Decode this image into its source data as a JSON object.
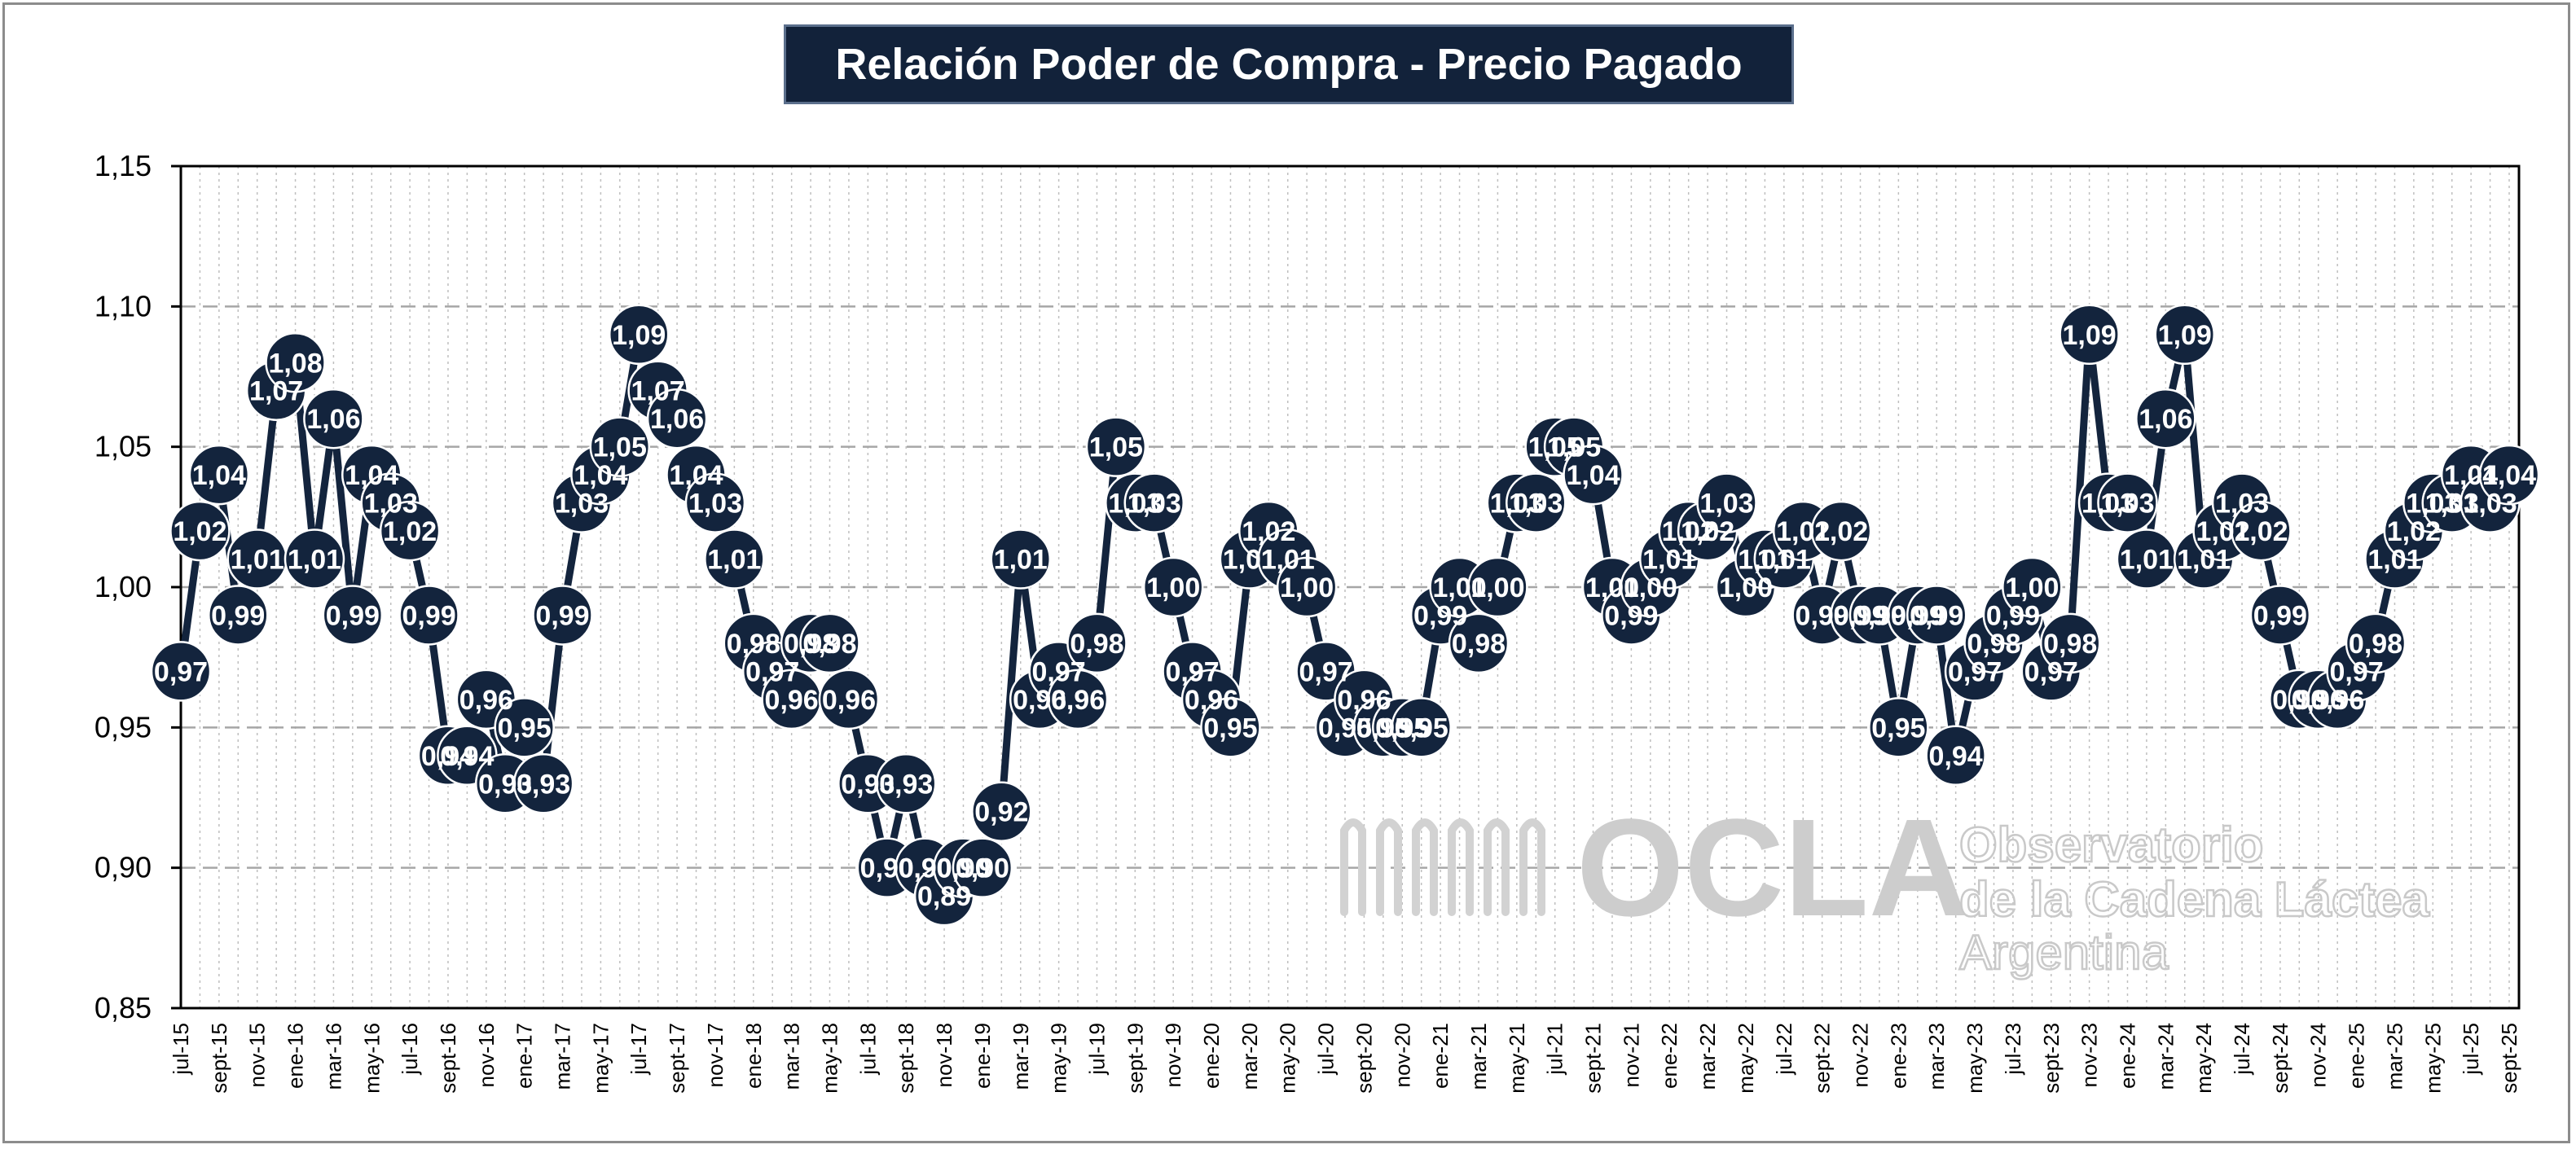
{
  "chart_data": {
    "type": "line",
    "title": "Relación Poder de Compra - Precio Pagado",
    "ylim": [
      0.85,
      1.15
    ],
    "y_ticks": [
      "0,85",
      "0,90",
      "0,95",
      "1,00",
      "1,05",
      "1,10",
      "1,15"
    ],
    "x_labels": [
      "jul-15",
      "sept-15",
      "nov-15",
      "ene-16",
      "mar-16",
      "may-16",
      "jul-16",
      "sept-16",
      "nov-16",
      "ene-17",
      "mar-17",
      "may-17",
      "jul-17",
      "sept-17",
      "nov-17",
      "ene-18",
      "mar-18",
      "may-18",
      "jul-18",
      "sept-18",
      "nov-18",
      "ene-19",
      "mar-19",
      "may-19",
      "jul-19",
      "sept-19",
      "nov-19",
      "ene-20",
      "mar-20",
      "may-20",
      "jul-20",
      "sept-20",
      "nov-20",
      "ene-21",
      "mar-21",
      "may-21",
      "jul-21",
      "sept-21",
      "nov-21",
      "ene-22",
      "mar-22",
      "may-22",
      "jul-22",
      "sept-22",
      "nov-22",
      "ene-23",
      "mar-23",
      "may-23",
      "jul-23",
      "sept-23",
      "nov-23",
      "ene-24",
      "mar-24",
      "may-24",
      "jul-24",
      "sept-24",
      "nov-24",
      "ene-25",
      "mar-25",
      "may-25",
      "jul-25",
      "sept-25"
    ],
    "legend": "none",
    "grid": "horizontal dashed major, vertical dotted",
    "series": [
      {
        "values": [
          0.97,
          1.02,
          1.04,
          0.99,
          1.01,
          1.07,
          1.08,
          1.01,
          1.06,
          0.99,
          1.04,
          1.03,
          1.02,
          0.99,
          0.94,
          0.94,
          0.96,
          0.93,
          0.95,
          0.93,
          0.99,
          1.03,
          1.04,
          1.05,
          1.09,
          1.07,
          1.06,
          1.04,
          1.03,
          1.01,
          0.98,
          0.97,
          0.96,
          0.98,
          0.98,
          0.96,
          0.93,
          0.9,
          0.93,
          0.9,
          0.89,
          0.9,
          0.9,
          0.92,
          1.01,
          0.96,
          0.97,
          0.96,
          0.98,
          1.05,
          1.03,
          1.03,
          1.0,
          0.97,
          0.96,
          0.95,
          1.01,
          1.02,
          1.01,
          1.0,
          0.97,
          0.95,
          0.96,
          0.95,
          0.95,
          0.95,
          0.99,
          1.0,
          0.98,
          1.0,
          1.03,
          1.03,
          1.05,
          1.05,
          1.04,
          1.0,
          0.99,
          1.0,
          1.01,
          1.02,
          1.02,
          1.03,
          1.0,
          1.01,
          1.01,
          1.02,
          0.99,
          1.02,
          0.99,
          0.99,
          0.95,
          0.99,
          0.99,
          0.94,
          0.97,
          0.98,
          0.99,
          1.0,
          0.97,
          0.98,
          1.09,
          1.03,
          1.03,
          1.01,
          1.06,
          1.09,
          1.01,
          1.02,
          1.03,
          1.02,
          0.99,
          0.96,
          0.96,
          0.96,
          0.97,
          0.98,
          1.01,
          1.02,
          1.03,
          1.03,
          1.04,
          1.03,
          1.04
        ],
        "labels": [
          "0,97",
          "1,02",
          "1,04",
          "0,99",
          "1,01",
          "1,07",
          "1,08",
          "1,01",
          "1,06",
          "0,99",
          "1,04",
          "1,03",
          "1,02",
          "0,99",
          "0,94",
          "0,94",
          "0,96",
          "0,93",
          "0,95",
          "0,93",
          "0,99",
          "1,03",
          "1,04",
          "1,05",
          "1,09",
          "1,07",
          "1,06",
          "1,04",
          "1,03",
          "1,01",
          "0,98",
          "0,97",
          "0,96",
          "0,98",
          "0,98",
          "0,96",
          "0,93",
          "0,90",
          "0,93",
          "0,90",
          "0,89",
          "0,90",
          "0,90",
          "0,92",
          "1,01",
          "0,96",
          "0,97",
          "0,96",
          "0,98",
          "1,05",
          "1,03",
          "1,03",
          "1,00",
          "0,97",
          "0,96",
          "0,95",
          "1,01",
          "1,02",
          "1,01",
          "1,00",
          "0,97",
          "0,95",
          "0,96",
          "0,95",
          "0,95",
          "0,95",
          "0,99",
          "1,00",
          "0,98",
          "1,00",
          "1,03",
          "1,03",
          "1,05",
          "1,05",
          "1,04",
          "1,00",
          "0,99",
          "1,00",
          "1,01",
          "1,02",
          "1,02",
          "1,03",
          "1,00",
          "1,01",
          "1,01",
          "1,02",
          "0,99",
          "1,02",
          "0,99",
          "0,99",
          "0,95",
          "0,99",
          "0,99",
          "0,94",
          "0,97",
          "0,98",
          "0,99",
          "1,00",
          "0,97",
          "0,98",
          "1,09",
          "1,03",
          "1,03",
          "1,01",
          "1,06",
          "1,09",
          "1,01",
          "1,02",
          "1,03",
          "1,02",
          "0,99",
          "0,96",
          "0,96",
          "0,96",
          "0,97",
          "0,98",
          "1,01",
          "1,02",
          "1,03",
          "1,03",
          "1,04",
          "1,03",
          "1,04"
        ],
        "color": "#13243d",
        "marker_label_color": "#ffffff"
      }
    ]
  },
  "watermark": {
    "logo_text": "OCLA",
    "line1": "Observatorio",
    "line2": "de la Cadena Láctea",
    "line3": "Argentina"
  },
  "colors": {
    "title_bg": "#12223a",
    "series": "#13243d",
    "grid": "#a6a6a6",
    "watermark": "#cdcdcd"
  }
}
